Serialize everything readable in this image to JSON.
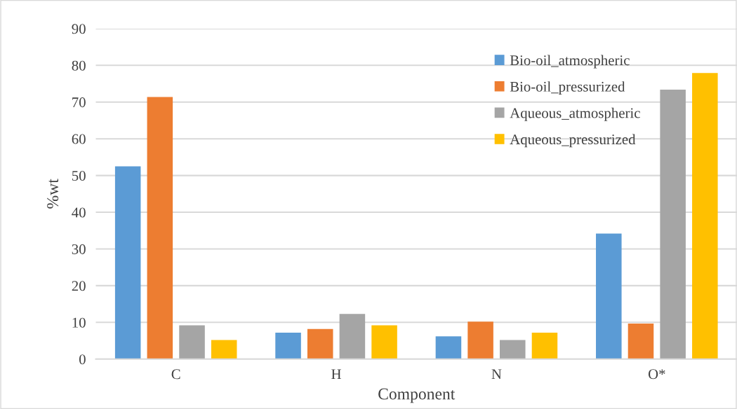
{
  "chart_data": {
    "type": "bar",
    "xlabel": "Component",
    "ylabel": "%wt",
    "categories": [
      "C",
      "H",
      "N",
      "O*"
    ],
    "series": [
      {
        "name": "Bio-oil_atmospheric",
        "color": "#5b9bd5",
        "values": [
          52.5,
          7.2,
          6.2,
          34.2
        ]
      },
      {
        "name": "Bio-oil_pressurized",
        "color": "#ed7d31",
        "values": [
          71.4,
          8.2,
          10.2,
          9.7
        ]
      },
      {
        "name": "Aqueous_atmospheric",
        "color": "#a5a5a5",
        "values": [
          9.2,
          12.3,
          5.2,
          73.4
        ]
      },
      {
        "name": "Aqueous_pressurized",
        "color": "#ffc000",
        "values": [
          5.2,
          9.2,
          7.2,
          77.9
        ]
      }
    ],
    "ylim": [
      0,
      90
    ],
    "yticks": [
      0,
      10,
      20,
      30,
      40,
      50,
      60,
      70,
      80,
      90
    ],
    "grid": "y",
    "legend": "top right"
  }
}
